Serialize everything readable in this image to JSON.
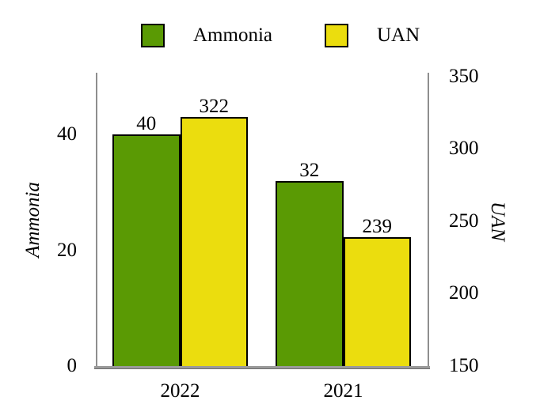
{
  "chart_data": {
    "type": "bar",
    "categories": [
      "2022",
      "2021"
    ],
    "series": [
      {
        "name": "Ammonia",
        "axis": "left",
        "color": "#5a9a04",
        "values": [
          40,
          32
        ]
      },
      {
        "name": "UAN",
        "axis": "right",
        "color": "#ebdd0e",
        "values": [
          322,
          239
        ]
      }
    ],
    "left_axis": {
      "label": "Ammonia",
      "ticks": [
        0,
        20,
        40
      ],
      "range": [
        0,
        50.65
      ]
    },
    "right_axis": {
      "label": "UAN",
      "ticks": [
        150,
        200,
        250,
        300,
        350
      ],
      "range": [
        150,
        352.5
      ]
    },
    "legend_position": "top-center",
    "grid": false,
    "value_labels_shown": true,
    "style": {
      "bar_border_color": "#000000",
      "axis_color": "#8e8e8e",
      "text_color": "#000000",
      "background": "#ffffff"
    }
  }
}
